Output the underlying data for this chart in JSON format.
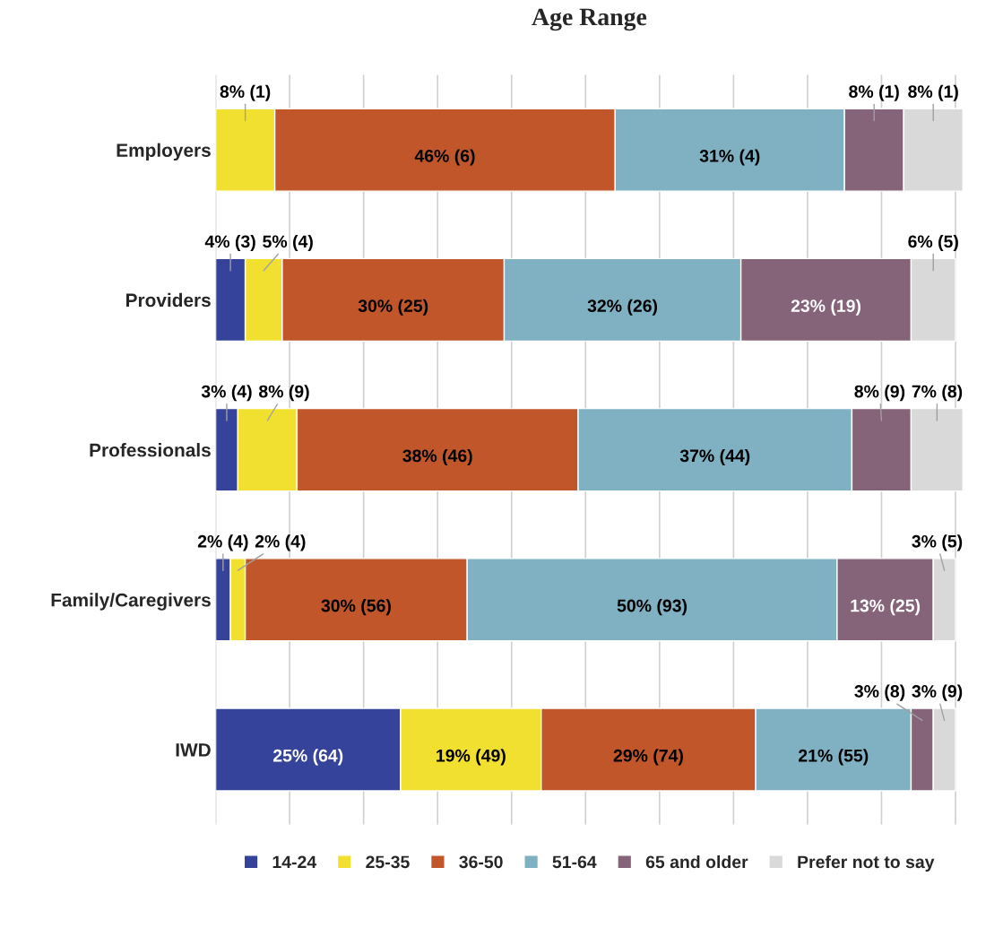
{
  "chart_data": {
    "type": "bar",
    "orientation": "horizontal",
    "stacked": true,
    "title": "Age Range",
    "categories": [
      "Employers",
      "Providers",
      "Professionals",
      "Family/Caregivers",
      "IWD"
    ],
    "xlim": [
      0,
      101
    ],
    "xticks": [
      {
        "value": 0,
        "label": null
      },
      {
        "value": 10,
        "label": null
      },
      {
        "value": 20,
        "label": null
      },
      {
        "value": 30,
        "label": null
      },
      {
        "value": 40,
        "label": null
      },
      {
        "value": 50,
        "label": null
      },
      {
        "value": 60,
        "label": null
      },
      {
        "value": 70,
        "label": null
      },
      {
        "value": 80,
        "label": null
      },
      {
        "value": 90,
        "label": null
      },
      {
        "value": 100,
        "label": null
      }
    ],
    "tick_labels": "y",
    "grid": "x",
    "legend": "bottom",
    "series": [
      {
        "name": "14-24",
        "color": "#36439a",
        "values": [
          0,
          4,
          3,
          2,
          25
        ],
        "value_labels": [
          null,
          "4% (3)",
          "3% (4)",
          "2% (4)",
          "25% (64)"
        ]
      },
      {
        "name": "25-35",
        "color": "#f2e030",
        "values": [
          8,
          5,
          8,
          2,
          19
        ],
        "value_labels": [
          "8% (1)",
          "5% (4)",
          "8% (9)",
          "2% (4)",
          "19% (49)"
        ]
      },
      {
        "name": "36-50",
        "color": "#c0562a",
        "values": [
          46,
          30,
          38,
          30,
          29
        ],
        "value_labels": [
          "46% (6)",
          "30% (25)",
          "38% (46)",
          "30% (56)",
          "29% (74)"
        ]
      },
      {
        "name": "51-64",
        "color": "#80b1c3",
        "values": [
          31,
          32,
          37,
          50,
          21
        ],
        "value_labels": [
          "31% (4)",
          "32% (26)",
          "37% (44)",
          "50% (93)",
          "21% (55)"
        ]
      },
      {
        "name": "65 and older",
        "color": "#856378",
        "values": [
          8,
          23,
          8,
          13,
          3
        ],
        "value_labels": [
          "8% (1)",
          "23% (19)",
          "8% (9)",
          "13% (25)",
          "3% (8)"
        ]
      },
      {
        "name": "Prefer not to say",
        "color": "#d9d9d9",
        "values": [
          8,
          6,
          7,
          3,
          3
        ],
        "value_labels": [
          "8% (1)",
          "6% (5)",
          "7% (8)",
          "3% (5)",
          "3% (9)"
        ]
      }
    ]
  }
}
